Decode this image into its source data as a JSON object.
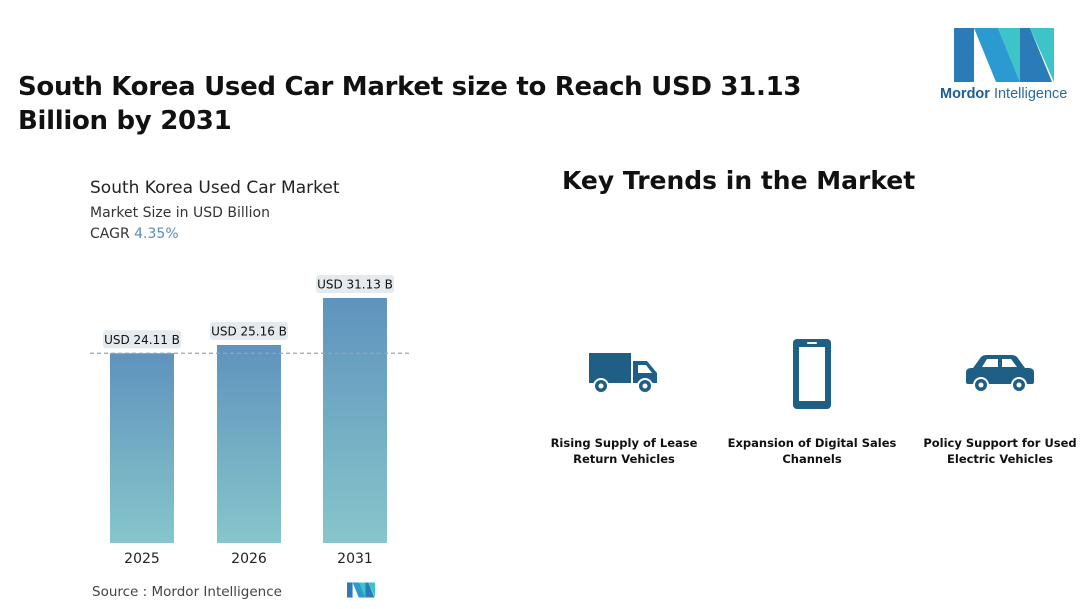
{
  "headline": "South Korea Used Car Market size to Reach USD 31.13 Billion by 2031",
  "logo": {
    "brand": "Mordor",
    "suffix": "Intelligence"
  },
  "chart_header": {
    "title": "South Korea Used Car Market",
    "subtitle": "Market Size in USD Billion",
    "cagr_label": "CAGR",
    "cagr_value": "4.35%"
  },
  "chart_data": {
    "type": "bar",
    "title": "South Korea Used Car Market",
    "ylabel": "Market Size in USD Billion",
    "categories": [
      "2025",
      "2026",
      "2031"
    ],
    "values": [
      24.11,
      25.16,
      31.13
    ],
    "data_labels": [
      "USD 24.11 B",
      "USD 25.16 B",
      "USD 31.13 B"
    ],
    "reference_line": 24.11,
    "grid": false,
    "legend": "none",
    "colors": {
      "bar_top": "#5f93bd",
      "bar_bottom": "#86c6cb",
      "label_bg": "#e4eaee",
      "dash": "#8ea7b7"
    }
  },
  "source": {
    "label": "Source :",
    "value": "Mordor Intelligence"
  },
  "trends_title": "Key Trends in the Market",
  "trends": [
    {
      "icon": "truck-icon",
      "line1": "Rising Supply of Lease",
      "line2": "Return Vehicles"
    },
    {
      "icon": "smartphone-icon",
      "line1": "Expansion of Digital Sales",
      "line2": "Channels"
    },
    {
      "icon": "car-icon",
      "line1": "Policy Support for Used",
      "line2": "Electric Vehicles"
    }
  ],
  "colors": {
    "icon": "#1f5f86",
    "logo_dark": "#2b7bb9",
    "logo_light": "#3cc4c9"
  }
}
